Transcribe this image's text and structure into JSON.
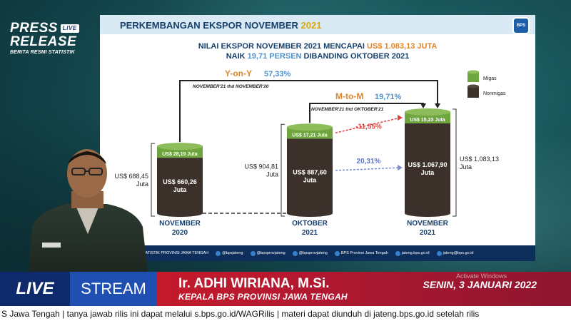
{
  "brand": {
    "line1": "PRESS",
    "badge": "LIVE",
    "line2": "RELEASE",
    "tagline": "BERITA RESMI STATISTIK"
  },
  "slide": {
    "title_prefix": "PERKEMBANGAN EKSPOR NOVEMBER ",
    "title_year": "2021",
    "logo_text": "BPS",
    "headline1_prefix": "NILAI EKSPOR NOVEMBER 2021 MENCAPAI ",
    "headline1_value": "US$ 1.083,13 JUTA",
    "headline2_prefix": "NAIK ",
    "headline2_value": "19,71 PERSEN",
    "headline2_suffix": " DIBANDING OKTOBER 2021"
  },
  "chart_data": {
    "type": "bar",
    "categories": [
      "NOVEMBER 2020",
      "OKTOBER 2021",
      "NOVEMBER 2021"
    ],
    "category_lines": [
      [
        "NOVEMBER",
        "2020"
      ],
      [
        "OKTOBER",
        "2021"
      ],
      [
        "NOVEMBER",
        "2021"
      ]
    ],
    "series": [
      {
        "name": "Migas",
        "values": [
          28.19,
          17.21,
          15.23
        ],
        "labels": [
          "US$ 28,19 Juta",
          "US$ 17,21 Juta",
          "US$ 15,23 Juta"
        ],
        "color": "#6fa53e"
      },
      {
        "name": "Nonmigas",
        "values": [
          660.26,
          887.6,
          1067.9
        ],
        "labels": [
          "US$ 660,26 Juta",
          "US$ 887,60 Juta",
          "US$ 1.067,90 Juta"
        ],
        "color": "#3b302a"
      }
    ],
    "totals": [
      "US$ 688,45 Juta",
      "US$ 904,81 Juta",
      "US$ 1.083,13 Juta"
    ],
    "yoy": {
      "label": "Y-on-Y",
      "value": "57,33%",
      "sub": "NOVEMBER'21 thd NOVEMBER'20"
    },
    "mtm": {
      "label": "M-to-M",
      "value": "19,71%",
      "sub": "NOVEMBER'21 thd OKTOBER'21"
    },
    "change_migas": "-11,55%",
    "change_nonmigas": "20,31%",
    "legend": [
      "Migas",
      "Nonmigas"
    ]
  },
  "footer": [
    "BADAN PUSAT STATISTIK PROVINSI JAWA TENGAH",
    "@bpsjateng",
    "@bpsprovjateng",
    "@bpsprovjateng",
    "BPS Provinsi Jawa Tengah",
    "jateng.bps.go.id",
    "jateng@bps.go.id"
  ],
  "lower": {
    "live": "LIVE",
    "stream": "STREAM",
    "name": "Ir. ADHI WIRIANA, M.Si.",
    "role": "KEPALA BPS PROVINSI JAWA TENGAH",
    "date": "SENIN, 3 JANUARI 2022",
    "watermark": "Activate Windows"
  },
  "ticker": "S Jawa Tengah   |   tanya jawab rilis ini dapat melalui s.bps.go.id/WAGRilis   |   materi dapat diunduh di jateng.bps.go.id setelah rilis"
}
